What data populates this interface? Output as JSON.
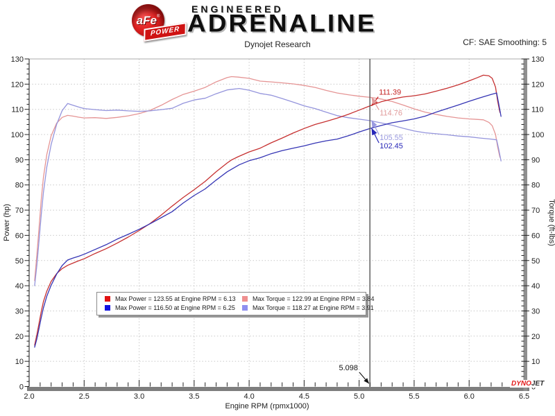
{
  "header": {
    "logo": {
      "circle_text": "aFe",
      "registered": "®",
      "banner_text": "POWER"
    },
    "brand_top": "ENGINEERED",
    "brand_main": "ADRENALINE",
    "subtitle": "Dynojet Research",
    "cf_label": "CF: SAE Smoothing: 5"
  },
  "chart_data": {
    "type": "line",
    "title": "Dynojet Research",
    "xlabel": "Engine RPM (rpmx1000)",
    "ylabel_left": "Power (hp)",
    "ylabel_right": "Torque (ft-lbs)",
    "xlim": [
      2.0,
      6.5
    ],
    "ylim": [
      0,
      130
    ],
    "x_ticks": [
      "2.0",
      "2.5",
      "3.0",
      "3.5",
      "4.0",
      "4.5",
      "5.0",
      "5.5",
      "6.0",
      "6.5"
    ],
    "y_ticks": [
      "0",
      "10",
      "20",
      "30",
      "40",
      "50",
      "60",
      "70",
      "80",
      "90",
      "100",
      "110",
      "120",
      "130"
    ],
    "x_minor_step": 0.1,
    "y_minor_step": 2,
    "grid": true,
    "series": [
      {
        "name": "torque-tuned",
        "color": "#e59494",
        "axis": "right",
        "points": [
          [
            2.05,
            42
          ],
          [
            2.07,
            52
          ],
          [
            2.09,
            63
          ],
          [
            2.11,
            74
          ],
          [
            2.13,
            83
          ],
          [
            2.16,
            92
          ],
          [
            2.2,
            99.5
          ],
          [
            2.25,
            104.5
          ],
          [
            2.3,
            106.8
          ],
          [
            2.35,
            107.6
          ],
          [
            2.4,
            107.3
          ],
          [
            2.45,
            106.9
          ],
          [
            2.5,
            106.6
          ],
          [
            2.6,
            106.7
          ],
          [
            2.7,
            106.4
          ],
          [
            2.8,
            106.8
          ],
          [
            2.9,
            107.4
          ],
          [
            3.0,
            108.3
          ],
          [
            3.1,
            109.6
          ],
          [
            3.2,
            111.6
          ],
          [
            3.3,
            113.9
          ],
          [
            3.4,
            115.9
          ],
          [
            3.5,
            117.2
          ],
          [
            3.6,
            118.7
          ],
          [
            3.7,
            120.9
          ],
          [
            3.8,
            122.6
          ],
          [
            3.84,
            122.99
          ],
          [
            3.9,
            122.8
          ],
          [
            4.0,
            122.3
          ],
          [
            4.1,
            121.2
          ],
          [
            4.2,
            120.9
          ],
          [
            4.3,
            120.5
          ],
          [
            4.4,
            120.1
          ],
          [
            4.5,
            119.5
          ],
          [
            4.6,
            118.7
          ],
          [
            4.7,
            117.5
          ],
          [
            4.8,
            116.5
          ],
          [
            4.9,
            115.8
          ],
          [
            5.0,
            115.2
          ],
          [
            5.1,
            114.75
          ],
          [
            5.2,
            114.1
          ],
          [
            5.3,
            113.1
          ],
          [
            5.4,
            111.7
          ],
          [
            5.5,
            110.2
          ],
          [
            5.6,
            108.9
          ],
          [
            5.7,
            108.0
          ],
          [
            5.8,
            107.2
          ],
          [
            5.9,
            106.6
          ],
          [
            6.0,
            106.2
          ],
          [
            6.07,
            106.0
          ],
          [
            6.13,
            105.85
          ],
          [
            6.18,
            104.8
          ],
          [
            6.21,
            103.5
          ],
          [
            6.24,
            100.0
          ],
          [
            6.26,
            95.0
          ],
          [
            6.28,
            91.0
          ]
        ]
      },
      {
        "name": "torque-stock",
        "color": "#9494dc",
        "axis": "right",
        "points": [
          [
            2.05,
            40
          ],
          [
            2.07,
            48
          ],
          [
            2.09,
            58
          ],
          [
            2.11,
            68
          ],
          [
            2.13,
            77
          ],
          [
            2.16,
            87
          ],
          [
            2.2,
            96
          ],
          [
            2.25,
            104
          ],
          [
            2.3,
            109.5
          ],
          [
            2.35,
            112.3
          ],
          [
            2.4,
            111.6
          ],
          [
            2.45,
            110.9
          ],
          [
            2.5,
            110.3
          ],
          [
            2.6,
            109.9
          ],
          [
            2.7,
            109.5
          ],
          [
            2.8,
            109.7
          ],
          [
            2.9,
            109.4
          ],
          [
            3.0,
            109.2
          ],
          [
            3.1,
            109.4
          ],
          [
            3.2,
            109.9
          ],
          [
            3.3,
            110.4
          ],
          [
            3.4,
            112.4
          ],
          [
            3.5,
            113.7
          ],
          [
            3.6,
            114.4
          ],
          [
            3.7,
            116.2
          ],
          [
            3.8,
            117.7
          ],
          [
            3.91,
            118.27
          ],
          [
            4.0,
            117.6
          ],
          [
            4.1,
            116.3
          ],
          [
            4.2,
            115.6
          ],
          [
            4.3,
            114.3
          ],
          [
            4.4,
            112.9
          ],
          [
            4.5,
            111.4
          ],
          [
            4.6,
            110.3
          ],
          [
            4.7,
            108.9
          ],
          [
            4.8,
            107.5
          ],
          [
            4.9,
            106.7
          ],
          [
            5.0,
            106.1
          ],
          [
            5.1,
            105.5
          ],
          [
            5.2,
            104.6
          ],
          [
            5.3,
            103.7
          ],
          [
            5.4,
            102.5
          ],
          [
            5.5,
            101.4
          ],
          [
            5.6,
            100.7
          ],
          [
            5.7,
            100.3
          ],
          [
            5.8,
            99.9
          ],
          [
            5.9,
            99.4
          ],
          [
            6.0,
            99.1
          ],
          [
            6.1,
            98.6
          ],
          [
            6.2,
            98.2
          ],
          [
            6.25,
            97.9
          ],
          [
            6.27,
            94.0
          ],
          [
            6.29,
            89.5
          ]
        ]
      },
      {
        "name": "power-tuned",
        "color": "#c63030",
        "axis": "left",
        "points": [
          [
            2.05,
            16.4
          ],
          [
            2.07,
            20.5
          ],
          [
            2.09,
            25.1
          ],
          [
            2.11,
            29.7
          ],
          [
            2.13,
            33.7
          ],
          [
            2.16,
            37.8
          ],
          [
            2.2,
            41.7
          ],
          [
            2.25,
            44.8
          ],
          [
            2.3,
            46.8
          ],
          [
            2.35,
            48.1
          ],
          [
            2.4,
            49.0
          ],
          [
            2.45,
            49.9
          ],
          [
            2.5,
            50.7
          ],
          [
            2.6,
            52.8
          ],
          [
            2.7,
            54.7
          ],
          [
            2.8,
            56.9
          ],
          [
            2.9,
            59.3
          ],
          [
            3.0,
            61.9
          ],
          [
            3.1,
            64.7
          ],
          [
            3.2,
            68.0
          ],
          [
            3.3,
            71.6
          ],
          [
            3.4,
            75.0
          ],
          [
            3.5,
            78.1
          ],
          [
            3.6,
            81.4
          ],
          [
            3.7,
            85.2
          ],
          [
            3.8,
            88.7
          ],
          [
            3.84,
            89.9
          ],
          [
            3.9,
            91.2
          ],
          [
            4.0,
            93.1
          ],
          [
            4.1,
            94.6
          ],
          [
            4.2,
            96.7
          ],
          [
            4.3,
            98.6
          ],
          [
            4.4,
            100.6
          ],
          [
            4.5,
            102.4
          ],
          [
            4.6,
            104.0
          ],
          [
            4.7,
            105.2
          ],
          [
            4.8,
            106.5
          ],
          [
            4.9,
            108.0
          ],
          [
            5.0,
            109.7
          ],
          [
            5.1,
            111.4
          ],
          [
            5.2,
            113.0
          ],
          [
            5.3,
            114.1
          ],
          [
            5.4,
            114.9
          ],
          [
            5.5,
            115.4
          ],
          [
            5.6,
            116.1
          ],
          [
            5.7,
            117.2
          ],
          [
            5.8,
            118.4
          ],
          [
            5.9,
            119.7
          ],
          [
            6.0,
            121.3
          ],
          [
            6.07,
            122.5
          ],
          [
            6.13,
            123.55
          ],
          [
            6.18,
            123.3
          ],
          [
            6.21,
            122.3
          ],
          [
            6.24,
            118.8
          ],
          [
            6.26,
            113.2
          ],
          [
            6.28,
            108.8
          ]
        ]
      },
      {
        "name": "power-stock",
        "color": "#3434b4",
        "axis": "left",
        "points": [
          [
            2.05,
            15.6
          ],
          [
            2.07,
            18.9
          ],
          [
            2.09,
            23.1
          ],
          [
            2.11,
            27.3
          ],
          [
            2.13,
            31.2
          ],
          [
            2.16,
            35.8
          ],
          [
            2.2,
            40.2
          ],
          [
            2.25,
            44.6
          ],
          [
            2.3,
            48.0
          ],
          [
            2.35,
            50.2
          ],
          [
            2.4,
            51.0
          ],
          [
            2.45,
            51.7
          ],
          [
            2.5,
            52.5
          ],
          [
            2.6,
            54.4
          ],
          [
            2.7,
            56.3
          ],
          [
            2.8,
            58.5
          ],
          [
            2.9,
            60.4
          ],
          [
            3.0,
            62.4
          ],
          [
            3.1,
            64.6
          ],
          [
            3.2,
            67.0
          ],
          [
            3.3,
            69.4
          ],
          [
            3.4,
            72.8
          ],
          [
            3.5,
            75.8
          ],
          [
            3.6,
            78.4
          ],
          [
            3.7,
            81.9
          ],
          [
            3.8,
            85.2
          ],
          [
            3.91,
            88.0
          ],
          [
            4.0,
            89.6
          ],
          [
            4.1,
            90.8
          ],
          [
            4.2,
            92.4
          ],
          [
            4.3,
            93.6
          ],
          [
            4.4,
            94.6
          ],
          [
            4.5,
            95.5
          ],
          [
            4.6,
            96.6
          ],
          [
            4.7,
            97.5
          ],
          [
            4.8,
            98.2
          ],
          [
            4.9,
            99.5
          ],
          [
            5.0,
            101.0
          ],
          [
            5.1,
            102.4
          ],
          [
            5.2,
            103.6
          ],
          [
            5.3,
            104.7
          ],
          [
            5.4,
            105.4
          ],
          [
            5.5,
            106.2
          ],
          [
            5.6,
            107.3
          ],
          [
            5.7,
            108.9
          ],
          [
            5.8,
            110.3
          ],
          [
            5.9,
            111.7
          ],
          [
            6.0,
            113.2
          ],
          [
            6.1,
            114.6
          ],
          [
            6.2,
            115.9
          ],
          [
            6.25,
            116.5
          ],
          [
            6.27,
            112.0
          ],
          [
            6.29,
            107.2
          ]
        ]
      }
    ],
    "legend": {
      "position": "bottom-center",
      "entries": [
        {
          "swatch": "#e11212",
          "text": "Max Power = 123.55 at Engine RPM = 6.13"
        },
        {
          "swatch": "#ef8f8f",
          "text": "Max Torque = 122.99 at Engine RPM = 3.84"
        },
        {
          "swatch": "#1212e1",
          "text": "Max Power = 116.50 at Engine RPM = 6.25"
        },
        {
          "swatch": "#8f8fef",
          "text": "Max Torque = 118.27 at Engine RPM = 3.91"
        }
      ]
    },
    "cursor": {
      "rpm": 5.098,
      "rpm_label": "5.098",
      "callouts": [
        {
          "text": "111.39",
          "value": 111.39,
          "color": "#c42222"
        },
        {
          "text": "114.76",
          "value": 114.76,
          "color": "#e09a9a"
        },
        {
          "text": "105.55",
          "value": 105.55,
          "color": "#9a9ae0"
        },
        {
          "text": "102.45",
          "value": 102.45,
          "color": "#2828b8"
        }
      ]
    },
    "watermark": {
      "part1": "DYNO",
      "part2": "JET"
    }
  }
}
